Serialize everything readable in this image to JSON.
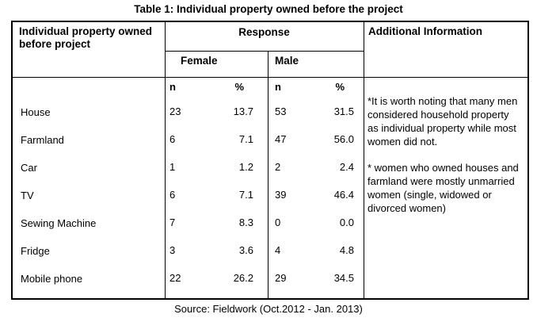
{
  "caption": "Table 1: Individual property owned before the project",
  "colors": {
    "text": "#000000",
    "background": "#ffffff",
    "border": "#000000"
  },
  "table": {
    "headers": {
      "property_column": "Individual property owned before project",
      "response": "Response",
      "female": "Female",
      "male": "Male",
      "additional": "Additional Information",
      "n": "n",
      "pct": "%"
    },
    "rows": [
      {
        "property": "House",
        "female_n": "23",
        "female_pct": "13.7",
        "male_n": "53",
        "male_pct": "31.5"
      },
      {
        "property": "Farmland",
        "female_n": "6",
        "female_pct": "7.1",
        "male_n": "47",
        "male_pct": "56.0"
      },
      {
        "property": "Car",
        "female_n": "1",
        "female_pct": "1.2",
        "male_n": "2",
        "male_pct": "2.4"
      },
      {
        "property": "TV",
        "female_n": "6",
        "female_pct": "7.1",
        "male_n": "39",
        "male_pct": "46.4"
      },
      {
        "property": "Sewing Machine",
        "female_n": "7",
        "female_pct": "8.3",
        "male_n": "0",
        "male_pct": "0.0"
      },
      {
        "property": "Fridge",
        "female_n": "3",
        "female_pct": "3.6",
        "male_n": "4",
        "male_pct": "4.8"
      },
      {
        "property": "Mobile phone",
        "female_n": "22",
        "female_pct": "26.2",
        "male_n": "29",
        "male_pct": "34.5"
      }
    ],
    "notes": [
      "*It is worth noting that many men considered household property as individual property while most women did not.",
      "* women who owned houses and farmland were mostly unmarried women (single, widowed or divorced women)"
    ]
  },
  "source": "Source: Fieldwork (Oct.2012 - Jan. 2013)"
}
